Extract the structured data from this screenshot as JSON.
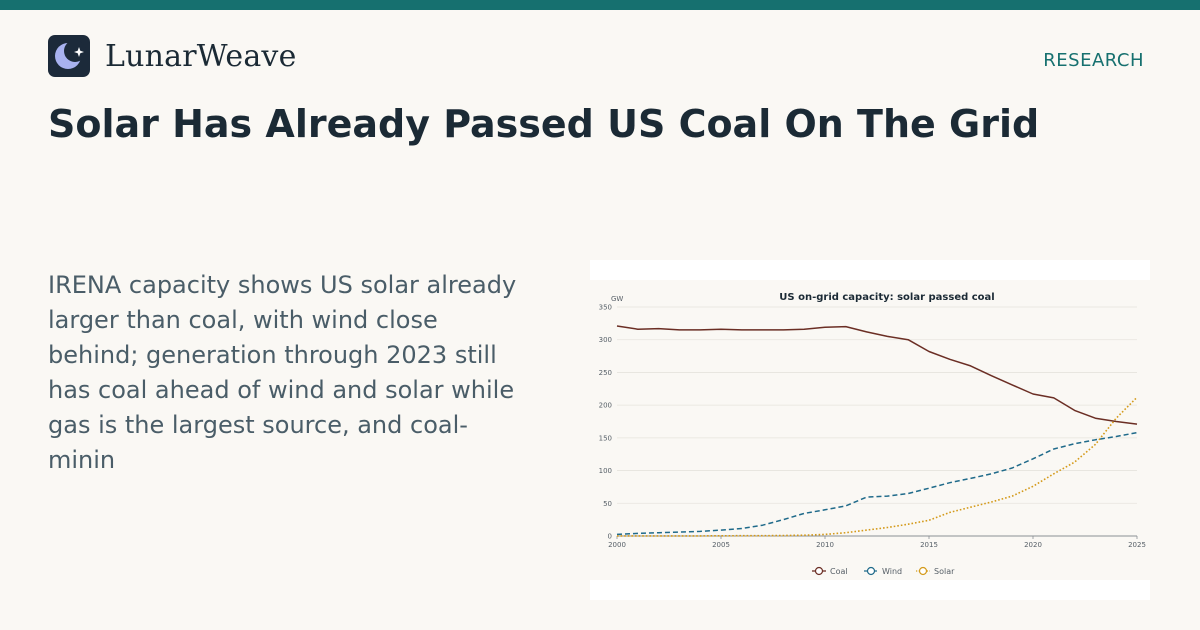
{
  "brand": {
    "name": "LunarWeave"
  },
  "section_label": "RESEARCH",
  "headline": "Solar Has Already Passed US Coal On The Grid",
  "summary": "IRENA capacity shows US solar already larger than coal, with wind close behind; generation through 2023 still has coal ahead of wind and solar while gas is the largest source, and coal-minin",
  "colors": {
    "accent": "#16706f",
    "coal": "#6b2e24",
    "wind": "#1f6a8a",
    "solar": "#d49a1a"
  },
  "chart_data": {
    "type": "line",
    "title": "US on-grid capacity: solar passed coal",
    "ylabel": "GW",
    "xlabel": "",
    "xlim": [
      2000,
      2025
    ],
    "ylim": [
      0,
      350
    ],
    "x_ticks": [
      2000,
      2005,
      2010,
      2015,
      2020,
      2025
    ],
    "y_ticks": [
      0,
      50,
      100,
      150,
      200,
      250,
      300,
      350
    ],
    "grid": true,
    "legend": "bottom-center",
    "x": [
      2000,
      2001,
      2002,
      2003,
      2004,
      2005,
      2006,
      2007,
      2008,
      2009,
      2010,
      2011,
      2012,
      2013,
      2014,
      2015,
      2016,
      2017,
      2018,
      2019,
      2020,
      2021,
      2022,
      2023,
      2024,
      2025
    ],
    "series": [
      {
        "name": "Coal",
        "style": "solid",
        "values": [
          321,
          316,
          317,
          315,
          315,
          316,
          315,
          315,
          315,
          316,
          319,
          320,
          312,
          305,
          300,
          282,
          270,
          260,
          245,
          231,
          217,
          211,
          192,
          180,
          175,
          171
        ]
      },
      {
        "name": "Wind",
        "style": "dashed",
        "values": [
          2.5,
          4,
          5,
          6,
          7,
          9,
          11.5,
          16.5,
          25,
          34.5,
          40,
          46,
          59.5,
          61,
          65,
          73,
          81.5,
          88,
          95,
          104,
          118,
          133,
          141,
          147,
          152,
          158
        ]
      },
      {
        "name": "Solar",
        "style": "dotted",
        "values": [
          0.1,
          0.1,
          0.1,
          0.2,
          0.2,
          0.3,
          0.4,
          0.5,
          0.8,
          1.2,
          2.5,
          5,
          9,
          13,
          18,
          24,
          36,
          44,
          52,
          61,
          76,
          95,
          113,
          140,
          180,
          212
        ]
      }
    ]
  }
}
